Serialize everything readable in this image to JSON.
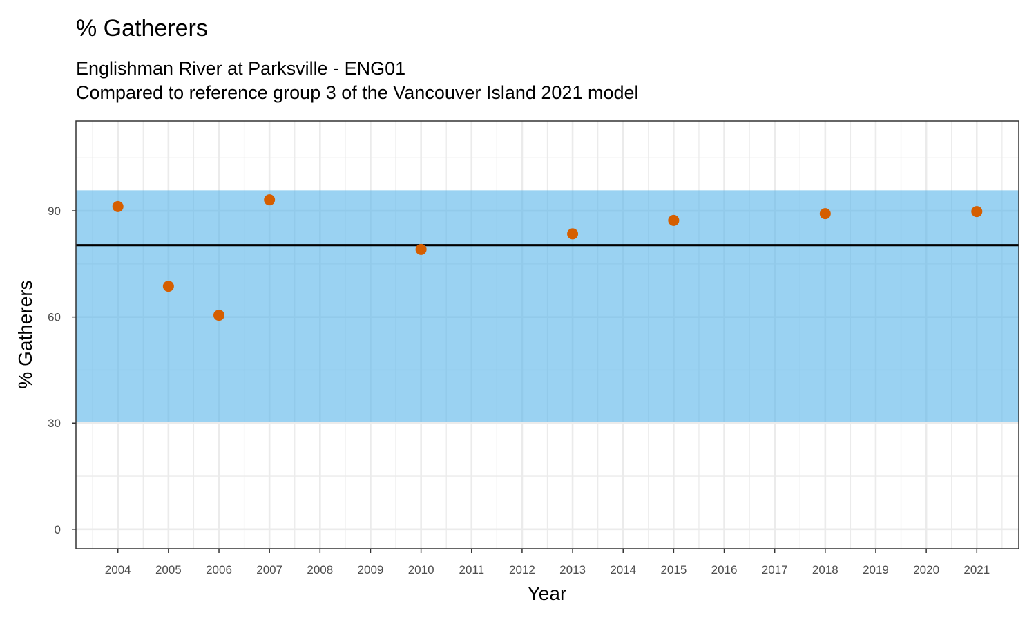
{
  "chart_data": {
    "type": "scatter",
    "title": "% Gatherers",
    "subtitle_line1": "Englishman River at Parksville - ENG01",
    "subtitle_line2": "Compared to reference group 3 of the Vancouver Island 2021 model",
    "xlabel": "Year",
    "ylabel": "% Gatherers",
    "xlim": [
      2003.17,
      2021.83
    ],
    "ylim": [
      -5.5,
      115.4
    ],
    "x_ticks": [
      2004,
      2005,
      2006,
      2007,
      2008,
      2009,
      2010,
      2011,
      2012,
      2013,
      2014,
      2015,
      2016,
      2017,
      2018,
      2019,
      2020,
      2021
    ],
    "y_ticks": [
      0,
      30,
      60,
      90
    ],
    "grid": true,
    "reference_band": {
      "low": 30.4,
      "high": 95.8,
      "color": "#56B4E9"
    },
    "reference_line": {
      "value": 80.3,
      "color": "#000000"
    },
    "point_color": "#D55E00",
    "points": [
      {
        "x": 2004,
        "y": 91.2
      },
      {
        "x": 2005,
        "y": 68.7
      },
      {
        "x": 2006,
        "y": 60.5
      },
      {
        "x": 2007,
        "y": 93.1
      },
      {
        "x": 2010,
        "y": 79.1
      },
      {
        "x": 2013,
        "y": 83.5
      },
      {
        "x": 2015,
        "y": 87.3
      },
      {
        "x": 2018,
        "y": 89.2
      },
      {
        "x": 2021,
        "y": 89.8
      }
    ]
  }
}
